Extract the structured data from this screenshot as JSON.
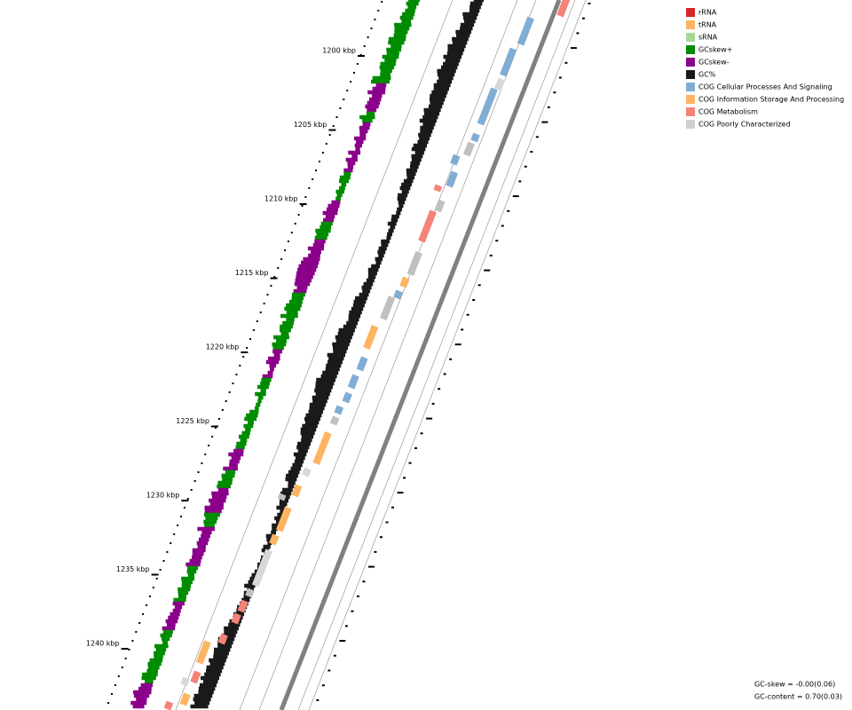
{
  "ticks": [
    "1200 kbp",
    "1205 kbp",
    "1210 kbp",
    "1215 kbp",
    "1220 kbp",
    "1225 kbp",
    "1230 kbp",
    "1235 kbp",
    "1240 kbp"
  ],
  "legend": [
    {
      "label": "rRNA",
      "color": "#d62728"
    },
    {
      "label": "tRNA",
      "color": "#fdb462"
    },
    {
      "label": "sRNA",
      "color": "#a6d896"
    },
    {
      "label": "GCskew+",
      "color": "#008c00"
    },
    {
      "label": "GCskew-",
      "color": "#8b008b"
    },
    {
      "label": "GC%",
      "color": "#1a1a1a"
    },
    {
      "label": "COG Cellular Processes And Signaling",
      "color": "#7fadd4"
    },
    {
      "label": "COG Information Storage And Processing",
      "color": "#fdb462"
    },
    {
      "label": "COG Metabolism",
      "color": "#f4837a"
    },
    {
      "label": "COG Poorly Characterized",
      "color": "#d0d0d0"
    }
  ],
  "stats": [
    "GC-skew = -0.00(0.06)",
    "GC-content = 0.70(0.03)"
  ]
}
